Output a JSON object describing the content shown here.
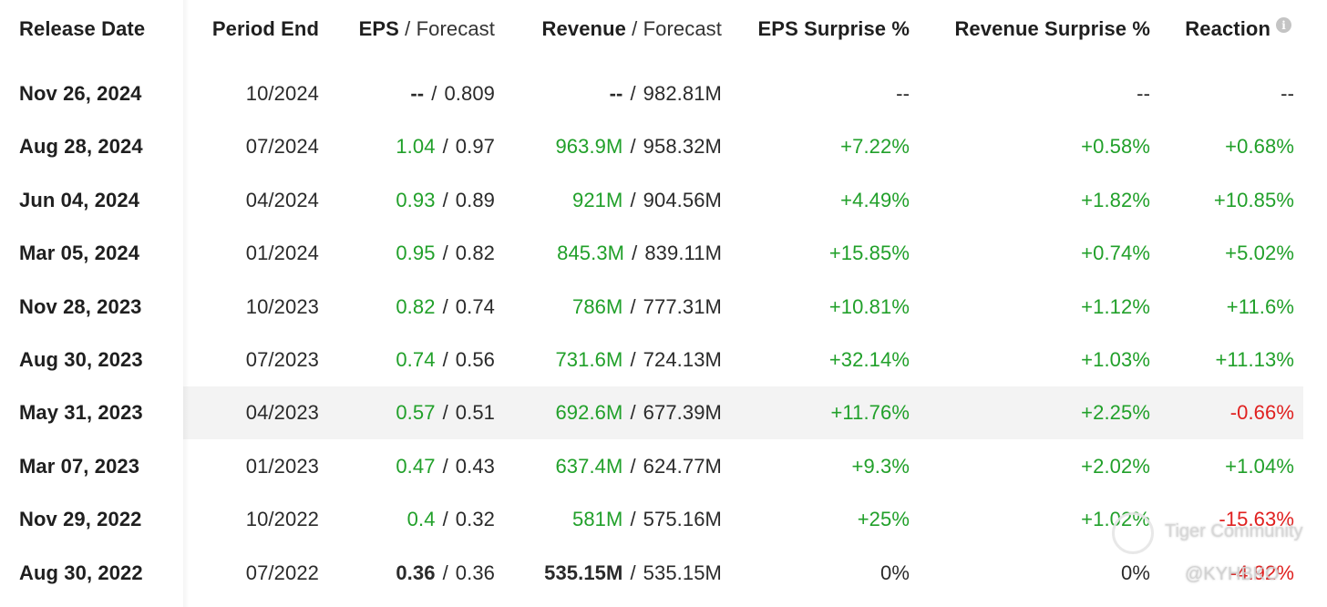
{
  "columns": {
    "release_date": "Release Date",
    "period_end": "Period End",
    "eps": "EPS",
    "eps_forecast": "Forecast",
    "revenue": "Revenue",
    "revenue_forecast": "Forecast",
    "eps_surprise": "EPS Surprise %",
    "revenue_surprise": "Revenue Surprise %",
    "reaction": "Reaction",
    "slash": "/",
    "info_icon": "i"
  },
  "rows": [
    {
      "date": "Nov 26, 2024",
      "period": "10/2024",
      "eps": "--",
      "eps_fc": "0.809",
      "rev": "--",
      "rev_fc": "982.81M",
      "eps_surp": "--",
      "rev_surp": "--",
      "reaction": "--"
    },
    {
      "date": "Aug 28, 2024",
      "period": "07/2024",
      "eps": "1.04",
      "eps_fc": "0.97",
      "rev": "963.9M",
      "rev_fc": "958.32M",
      "eps_surp": "+7.22%",
      "rev_surp": "+0.58%",
      "reaction": "+0.68%"
    },
    {
      "date": "Jun 04, 2024",
      "period": "04/2024",
      "eps": "0.93",
      "eps_fc": "0.89",
      "rev": "921M",
      "rev_fc": "904.56M",
      "eps_surp": "+4.49%",
      "rev_surp": "+1.82%",
      "reaction": "+10.85%"
    },
    {
      "date": "Mar 05, 2024",
      "period": "01/2024",
      "eps": "0.95",
      "eps_fc": "0.82",
      "rev": "845.3M",
      "rev_fc": "839.11M",
      "eps_surp": "+15.85%",
      "rev_surp": "+0.74%",
      "reaction": "+5.02%"
    },
    {
      "date": "Nov 28, 2023",
      "period": "10/2023",
      "eps": "0.82",
      "eps_fc": "0.74",
      "rev": "786M",
      "rev_fc": "777.31M",
      "eps_surp": "+10.81%",
      "rev_surp": "+1.12%",
      "reaction": "+11.6%"
    },
    {
      "date": "Aug 30, 2023",
      "period": "07/2023",
      "eps": "0.74",
      "eps_fc": "0.56",
      "rev": "731.6M",
      "rev_fc": "724.13M",
      "eps_surp": "+32.14%",
      "rev_surp": "+1.03%",
      "reaction": "+11.13%"
    },
    {
      "date": "May 31, 2023",
      "period": "04/2023",
      "eps": "0.57",
      "eps_fc": "0.51",
      "rev": "692.6M",
      "rev_fc": "677.39M",
      "eps_surp": "+11.76%",
      "rev_surp": "+2.25%",
      "reaction": "-0.66%"
    },
    {
      "date": "Mar 07, 2023",
      "period": "01/2023",
      "eps": "0.47",
      "eps_fc": "0.43",
      "rev": "637.4M",
      "rev_fc": "624.77M",
      "eps_surp": "+9.3%",
      "rev_surp": "+2.02%",
      "reaction": "+1.04%"
    },
    {
      "date": "Nov 29, 2022",
      "period": "10/2022",
      "eps": "0.4",
      "eps_fc": "0.32",
      "rev": "581M",
      "rev_fc": "575.16M",
      "eps_surp": "+25%",
      "rev_surp": "+1.02%",
      "reaction": "-15.63%"
    },
    {
      "date": "Aug 30, 2022",
      "period": "07/2022",
      "eps": "0.36",
      "eps_fc": "0.36",
      "rev": "535.15M",
      "rev_fc": "535.15M",
      "eps_surp": "0%",
      "rev_surp": "0%",
      "reaction": "-4.92%"
    }
  ],
  "watermark": {
    "brand": "Tiger Community",
    "user": "@KYHBKO"
  },
  "colors": {
    "positive": "#21a02a",
    "negative": "#e0201f",
    "highlight_row": "#f3f3f3"
  }
}
